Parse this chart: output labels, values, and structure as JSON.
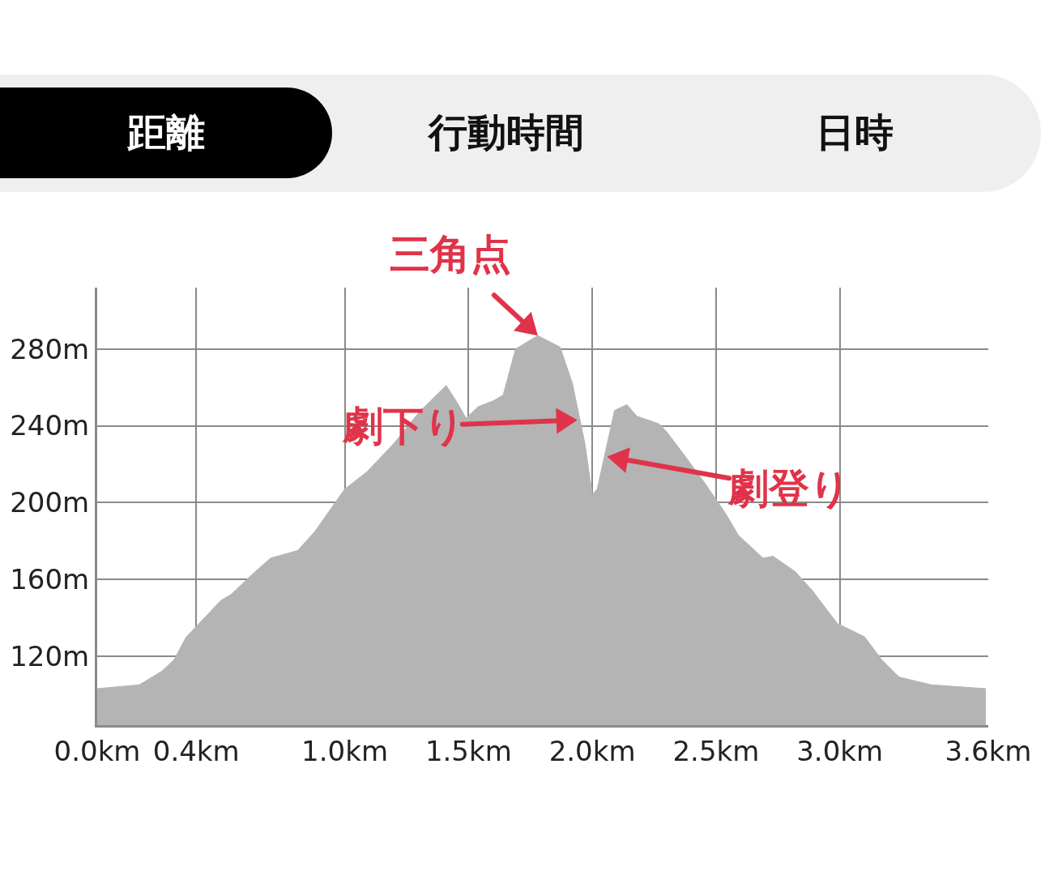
{
  "chart_data": {
    "type": "area",
    "annotations": [
      "距離",
      "行動時間",
      "日時",
      {
        "text": "三角点",
        "x": 1.78,
        "y": 287
      },
      {
        "text": "劇下り",
        "x": 1.94,
        "y": 243
      },
      {
        "text": "劇登り",
        "x": 2.06,
        "y": 224
      }
    ],
    "x": [
      0,
      0.17,
      0.26,
      0.31,
      0.36,
      0.39,
      0.5,
      0.54,
      0.63,
      0.7,
      0.81,
      0.88,
      1.0,
      1.09,
      1.2,
      1.3,
      1.41,
      1.45,
      1.49,
      1.54,
      1.6,
      1.64,
      1.69,
      1.78,
      1.87,
      1.92,
      1.97,
      2.0,
      2.02,
      2.09,
      2.14,
      2.18,
      2.27,
      2.3,
      2.37,
      2.45,
      2.54,
      2.59,
      2.69,
      2.73,
      2.82,
      2.89,
      2.99,
      3.1,
      3.17,
      3.24,
      3.37,
      3.59
    ],
    "series": [
      {
        "color": "#b4b4b4",
        "values": [
          103,
          105,
          112,
          118,
          130,
          134,
          149,
          152,
          163,
          171,
          175,
          185,
          207,
          216,
          231,
          247,
          261,
          253,
          244,
          250,
          253,
          256,
          280,
          287,
          281,
          262,
          231,
          204,
          207,
          248,
          251,
          245,
          241,
          237,
          225,
          211,
          194,
          183,
          171,
          172,
          164,
          154,
          137,
          130,
          118,
          109,
          105,
          103
        ]
      }
    ],
    "xlim": [
      0,
      3.6
    ],
    "xticks": [
      {
        "value": 0,
        "label": "0.0km"
      },
      {
        "value": 0.4,
        "label": "0.4km"
      },
      {
        "value": 1,
        "label": "1.0km"
      },
      {
        "value": 1.5,
        "label": "1.5km"
      },
      {
        "value": 2,
        "label": "2.0km"
      },
      {
        "value": 2.5,
        "label": "2.5km"
      },
      {
        "value": 3,
        "label": "3.0km"
      },
      {
        "value": 3.6,
        "label": "3.6km"
      }
    ],
    "ylim": [
      84,
      312
    ],
    "yticks": [
      {
        "value": 120,
        "label": "120m"
      },
      {
        "value": 160,
        "label": "160m"
      },
      {
        "value": 200,
        "label": "200m"
      },
      {
        "value": 240,
        "label": "240m"
      },
      {
        "value": 280,
        "label": "280m"
      }
    ],
    "grid": true
  }
}
